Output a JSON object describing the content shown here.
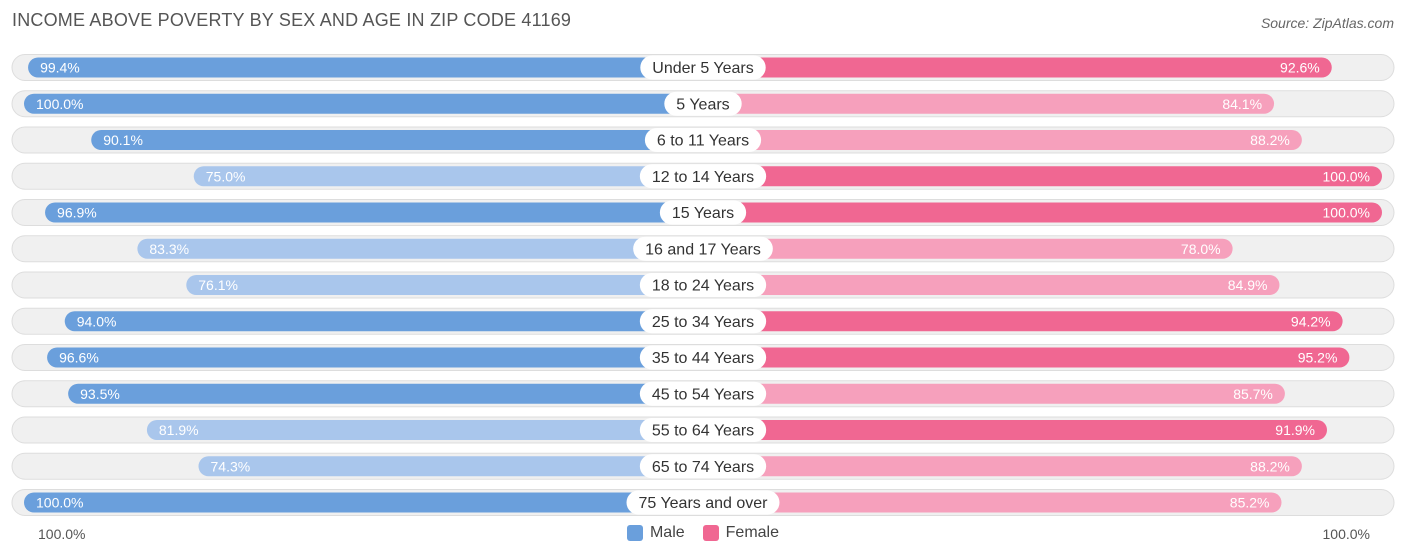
{
  "header": {
    "title": "INCOME ABOVE POVERTY BY SEX AND AGE IN ZIP CODE 41169",
    "source": "Source: ZipAtlas.com"
  },
  "axis": {
    "left_label": "100.0%",
    "right_label": "100.0%"
  },
  "legend": {
    "male_label": "Male",
    "female_label": "Female"
  },
  "colors": {
    "male_strong": "#6a9fdc",
    "male_light": "#a9c6ec",
    "female_strong": "#f06792",
    "female_light": "#f6a0bc",
    "track": "#f0f0f0",
    "track_border": "#dddddd"
  },
  "chart_data": {
    "type": "bar",
    "orientation": "horizontal-diverging",
    "title": "INCOME ABOVE POVERTY BY SEX AND AGE IN ZIP CODE 41169",
    "xlim": [
      0,
      100
    ],
    "legend_position": "bottom-center",
    "categories": [
      "Under 5 Years",
      "5 Years",
      "6 to 11 Years",
      "12 to 14 Years",
      "15 Years",
      "16 and 17 Years",
      "18 to 24 Years",
      "25 to 34 Years",
      "35 to 44 Years",
      "45 to 54 Years",
      "55 to 64 Years",
      "65 to 74 Years",
      "75 Years and over"
    ],
    "series": [
      {
        "name": "Male",
        "values": [
          99.4,
          100.0,
          90.1,
          75.0,
          96.9,
          83.3,
          76.1,
          94.0,
          96.6,
          93.5,
          81.9,
          74.3,
          100.0
        ],
        "labels": [
          "99.4%",
          "100.0%",
          "90.1%",
          "75.0%",
          "96.9%",
          "83.3%",
          "76.1%",
          "94.0%",
          "96.6%",
          "93.5%",
          "81.9%",
          "74.3%",
          "100.0%"
        ]
      },
      {
        "name": "Female",
        "values": [
          92.6,
          84.1,
          88.2,
          100.0,
          100.0,
          78.0,
          84.9,
          94.2,
          95.2,
          85.7,
          91.9,
          88.2,
          85.2
        ],
        "labels": [
          "92.6%",
          "84.1%",
          "88.2%",
          "100.0%",
          "100.0%",
          "78.0%",
          "84.9%",
          "94.2%",
          "95.2%",
          "85.7%",
          "91.9%",
          "88.2%",
          "85.2%"
        ]
      }
    ]
  }
}
